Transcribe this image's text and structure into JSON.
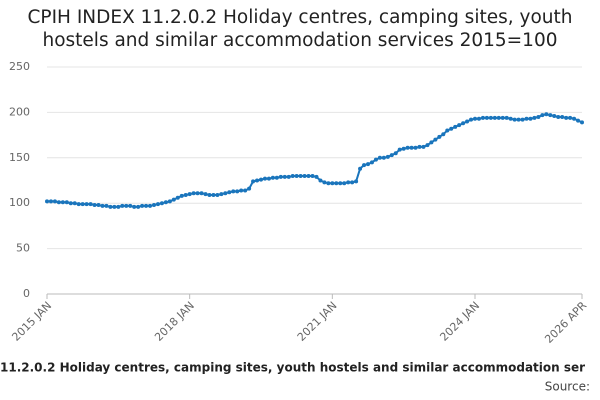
{
  "chart_data": {
    "type": "line",
    "title": "CPIH INDEX 11.2.0.2 Holiday centres, camping sites, youth hostels and similar accommodation services 2015=100",
    "caption": "11.2.0.2 Holiday centres, camping sites, youth hostels and similar accommodation ser",
    "source": "Source:",
    "color": "#1a75bc",
    "categories": [
      "2015 JAN",
      null,
      null,
      null,
      null,
      null,
      null,
      null,
      null,
      null,
      null,
      null,
      null,
      null,
      null,
      null,
      null,
      null,
      null,
      null,
      null,
      null,
      null,
      null,
      null,
      null,
      null,
      null,
      null,
      null,
      null,
      null,
      null,
      null,
      null,
      null,
      "2018 JAN",
      null,
      null,
      null,
      null,
      null,
      null,
      null,
      null,
      null,
      null,
      null,
      null,
      null,
      null,
      null,
      null,
      null,
      null,
      null,
      null,
      null,
      null,
      null,
      null,
      null,
      null,
      null,
      null,
      null,
      null,
      null,
      null,
      null,
      null,
      null,
      "2021 JAN",
      null,
      null,
      null,
      null,
      null,
      null,
      null,
      null,
      null,
      null,
      null,
      null,
      null,
      null,
      null,
      null,
      null,
      null,
      null,
      null,
      null,
      null,
      null,
      null,
      null,
      null,
      null,
      null,
      null,
      null,
      null,
      null,
      null,
      null,
      null,
      "2024 JAN",
      null,
      null,
      null,
      null,
      null,
      null,
      null,
      null,
      null,
      null,
      null,
      null,
      null,
      null,
      null,
      null,
      null,
      null,
      null,
      null,
      null,
      null,
      null,
      null,
      null,
      null,
      "2026 APR"
    ],
    "values": [
      102,
      102,
      102,
      101,
      101,
      101,
      100,
      100,
      99,
      99,
      99,
      99,
      98,
      98,
      97,
      97,
      96,
      96,
      96,
      97,
      97,
      97,
      96,
      96,
      97,
      97,
      97,
      98,
      99,
      100,
      101,
      102,
      104,
      106,
      108,
      109,
      110,
      111,
      111,
      111,
      110,
      109,
      109,
      109,
      110,
      111,
      112,
      113,
      113,
      114,
      114,
      116,
      124,
      125,
      126,
      127,
      127,
      128,
      128,
      129,
      129,
      129,
      130,
      130,
      130,
      130,
      130,
      130,
      129,
      125,
      123,
      122,
      122,
      122,
      122,
      122,
      123,
      123,
      124,
      138,
      142,
      143,
      145,
      148,
      150,
      150,
      151,
      153,
      155,
      159,
      160,
      161,
      161,
      161,
      162,
      162,
      164,
      167,
      170,
      173,
      176,
      180,
      182,
      184,
      186,
      188,
      190,
      192,
      193,
      193,
      194,
      194,
      194,
      194,
      194,
      194,
      194,
      193,
      192,
      192,
      192,
      193,
      193,
      194,
      195,
      197,
      198,
      197,
      196,
      195,
      195,
      194,
      194,
      193,
      191,
      189
    ],
    "ylim": [
      0,
      250
    ],
    "yticks": [
      0,
      50,
      100,
      150,
      200,
      250
    ],
    "grid": true
  }
}
